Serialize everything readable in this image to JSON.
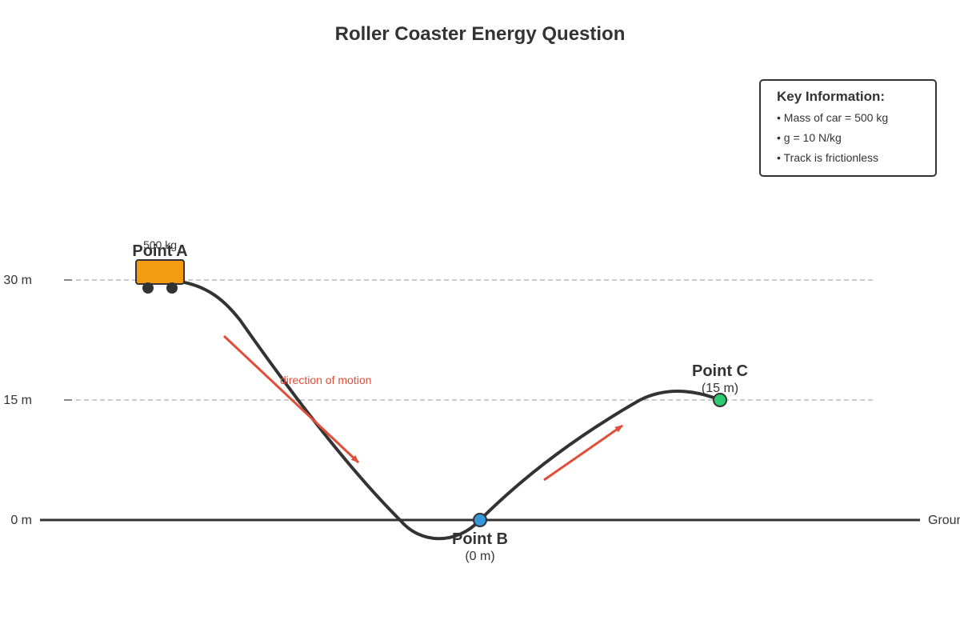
{
  "title": "Roller Coaster Energy Question",
  "height_axis": {
    "ticks": [
      "30 m",
      "15 m",
      "0 m"
    ],
    "ground_label": "Ground"
  },
  "points": {
    "a": {
      "name": "Point A"
    },
    "b": {
      "name": "Point B",
      "height": "(0 m)"
    },
    "c": {
      "name": "Point C",
      "height": "(15 m)"
    }
  },
  "car": {
    "mass_label": "500 kg",
    "color": "#f39c12"
  },
  "motion_label": "direction of motion",
  "key_info": {
    "title": "Key Information:",
    "items": [
      "• Mass of car = 500 kg",
      "• g = 10 N/kg",
      "• Track is frictionless"
    ]
  },
  "colors": {
    "track": "#333333",
    "arrow": "#e04e39",
    "point_b": "#3498db",
    "point_c": "#2ecc71"
  }
}
